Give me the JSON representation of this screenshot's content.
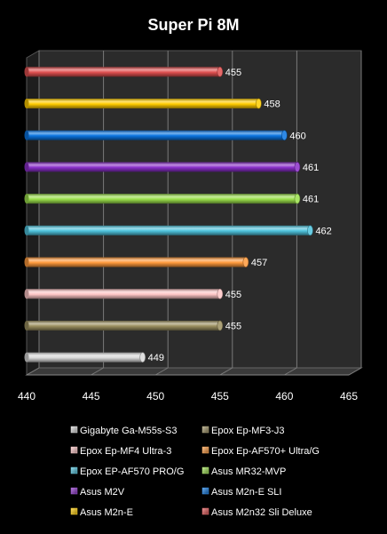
{
  "chart_data": {
    "type": "bar",
    "orientation": "horizontal",
    "title": "Super Pi 8M",
    "xlabel": "",
    "ylabel": "",
    "xlim": [
      440,
      465
    ],
    "x_ticks": [
      440,
      445,
      450,
      455,
      460,
      465
    ],
    "grid": true,
    "legend_position": "bottom",
    "series": [
      {
        "name": "Gigabyte Ga-M55s-S3",
        "value": 449,
        "color": "#d9d9d9"
      },
      {
        "name": "Epox Ep-MF3-J3",
        "value": 455,
        "color": "#9c9060"
      },
      {
        "name": "Epox Ep-MF4 Ultra-3",
        "value": 455,
        "color": "#ffc6c6"
      },
      {
        "name": "Epox Ep-AF570+ Ultra/G",
        "value": 457,
        "color": "#ff9a3c"
      },
      {
        "name": "Epox EP-AF570 PRO/G",
        "value": 462,
        "color": "#4ec3dd"
      },
      {
        "name": "Asus MR32-MVP",
        "value": 461,
        "color": "#9be04c"
      },
      {
        "name": "Asus M2V",
        "value": 461,
        "color": "#8a2fc9"
      },
      {
        "name": "Asus M2n-E SLI",
        "value": 460,
        "color": "#0a74e0"
      },
      {
        "name": "Asus M2n-E",
        "value": 458,
        "color": "#ffcc00"
      },
      {
        "name": "Asus M2n32 Sli Deluxe",
        "value": 455,
        "color": "#e05050"
      }
    ]
  }
}
